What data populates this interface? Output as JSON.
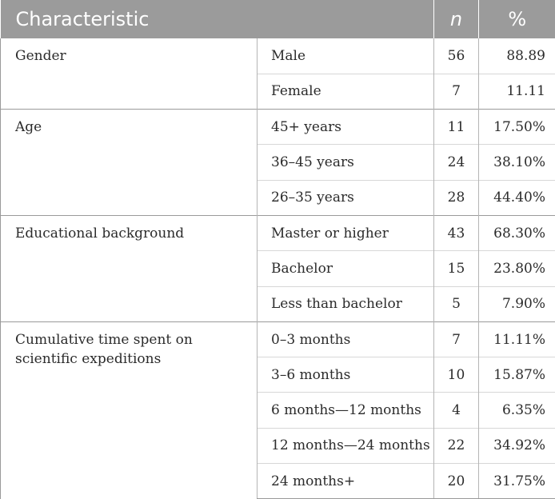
{
  "table": {
    "headers": {
      "characteristic": "Characteristic",
      "n": "n",
      "percent": "%"
    },
    "groups": [
      {
        "category": "Gender",
        "rows": [
          {
            "label": "Male",
            "n": "56",
            "pct": "88.89"
          },
          {
            "label": "Female",
            "n": "7",
            "pct": "11.11"
          }
        ]
      },
      {
        "category": "Age",
        "rows": [
          {
            "label": "45+ years",
            "n": "11",
            "pct": "17.50%"
          },
          {
            "label": "36–45 years",
            "n": "24",
            "pct": "38.10%"
          },
          {
            "label": "26–35 years",
            "n": "28",
            "pct": "44.40%"
          }
        ]
      },
      {
        "category": "Educational background",
        "rows": [
          {
            "label": "Master or higher",
            "n": "43",
            "pct": "68.30%"
          },
          {
            "label": "Bachelor",
            "n": "15",
            "pct": "23.80%"
          },
          {
            "label": "Less than bachelor",
            "n": "5",
            "pct": "7.90%"
          }
        ]
      },
      {
        "category": "Cumulative time spent on scientific expeditions",
        "rows": [
          {
            "label": "0–3 months",
            "n": "7",
            "pct": "11.11%"
          },
          {
            "label": "3–6 months",
            "n": "10",
            "pct": "15.87%"
          },
          {
            "label": "6 months—12 months",
            "n": "4",
            "pct": "6.35%"
          },
          {
            "label": "12 months—24 months",
            "n": "22",
            "pct": "34.92%"
          },
          {
            "label": "24 months+",
            "n": "20",
            "pct": "31.75%"
          }
        ]
      }
    ]
  }
}
